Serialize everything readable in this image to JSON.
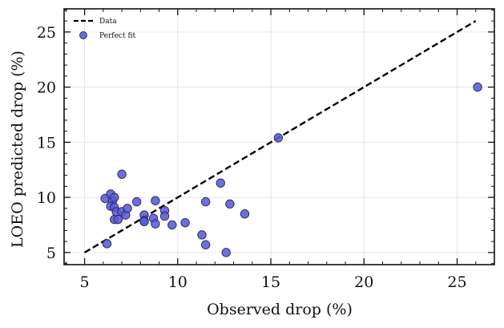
{
  "chart_data": {
    "type": "scatter",
    "xlabel": "Observed drop (%)",
    "ylabel": "LOEO predicted drop (%)",
    "xlim": [
      3.9,
      27.0
    ],
    "ylim": [
      3.9,
      27.1
    ],
    "xticks": [
      5,
      10,
      15,
      20,
      25
    ],
    "yticks": [
      5,
      10,
      15,
      20,
      25
    ],
    "grid": true,
    "legend_position": "top-left",
    "legend": [
      {
        "label": "Data",
        "kind": "line"
      },
      {
        "label": "Perfect fit",
        "kind": "marker"
      }
    ],
    "line_series": {
      "name": "Data",
      "style": "dashed",
      "color": "#000000",
      "points": [
        [
          5.0,
          5.0
        ],
        [
          26.0,
          26.0
        ]
      ]
    },
    "scatter_series": {
      "name": "Perfect fit",
      "color": "#5b5bd6",
      "edge_color": "#2a2a6e",
      "points": [
        [
          6.2,
          5.8
        ],
        [
          6.1,
          9.9
        ],
        [
          6.4,
          10.3
        ],
        [
          6.5,
          9.7
        ],
        [
          6.4,
          9.2
        ],
        [
          6.6,
          10.0
        ],
        [
          6.6,
          9.1
        ],
        [
          6.6,
          8.0
        ],
        [
          6.7,
          8.7
        ],
        [
          6.8,
          8.0
        ],
        [
          7.0,
          12.1
        ],
        [
          7.0,
          8.7
        ],
        [
          7.2,
          8.4
        ],
        [
          7.3,
          9.0
        ],
        [
          7.8,
          9.6
        ],
        [
          8.2,
          8.4
        ],
        [
          8.2,
          7.9
        ],
        [
          8.2,
          7.8
        ],
        [
          8.7,
          8.1
        ],
        [
          8.8,
          9.7
        ],
        [
          8.8,
          7.6
        ],
        [
          9.3,
          8.8
        ],
        [
          9.3,
          8.3
        ],
        [
          9.7,
          7.5
        ],
        [
          10.4,
          7.7
        ],
        [
          11.3,
          6.6
        ],
        [
          11.5,
          9.6
        ],
        [
          11.5,
          5.7
        ],
        [
          12.3,
          11.3
        ],
        [
          12.6,
          5.0
        ],
        [
          12.8,
          9.4
        ],
        [
          13.6,
          8.5
        ],
        [
          15.4,
          15.4
        ],
        [
          26.1,
          20.0
        ]
      ]
    }
  }
}
